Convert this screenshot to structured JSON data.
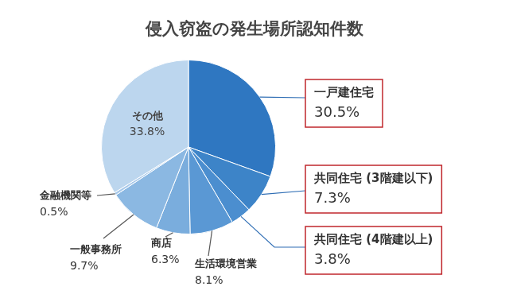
{
  "chart_data": {
    "type": "pie",
    "title": "侵入窃盗の発生場所認知件数",
    "categories": [
      "一戸建住宅",
      "共同住宅 (3階建以下)",
      "共同住宅 (4階建以上)",
      "生活環境営業",
      "商店",
      "一般事務所",
      "金融機関等",
      "その他"
    ],
    "values": [
      30.5,
      7.3,
      3.8,
      8.1,
      6.3,
      9.7,
      0.5,
      33.8
    ],
    "value_labels": [
      "30.5%",
      "7.3%",
      "3.8%",
      "8.1%",
      "6.3%",
      "9.7%",
      "0.5%",
      "33.8%"
    ],
    "colors": [
      "#2f77c1",
      "#3d84c8",
      "#4b8ecf",
      "#5a98d4",
      "#7aaddd",
      "#8bb8e2",
      "#a8c9ea",
      "#bcd6ee"
    ],
    "data_labels": true
  }
}
